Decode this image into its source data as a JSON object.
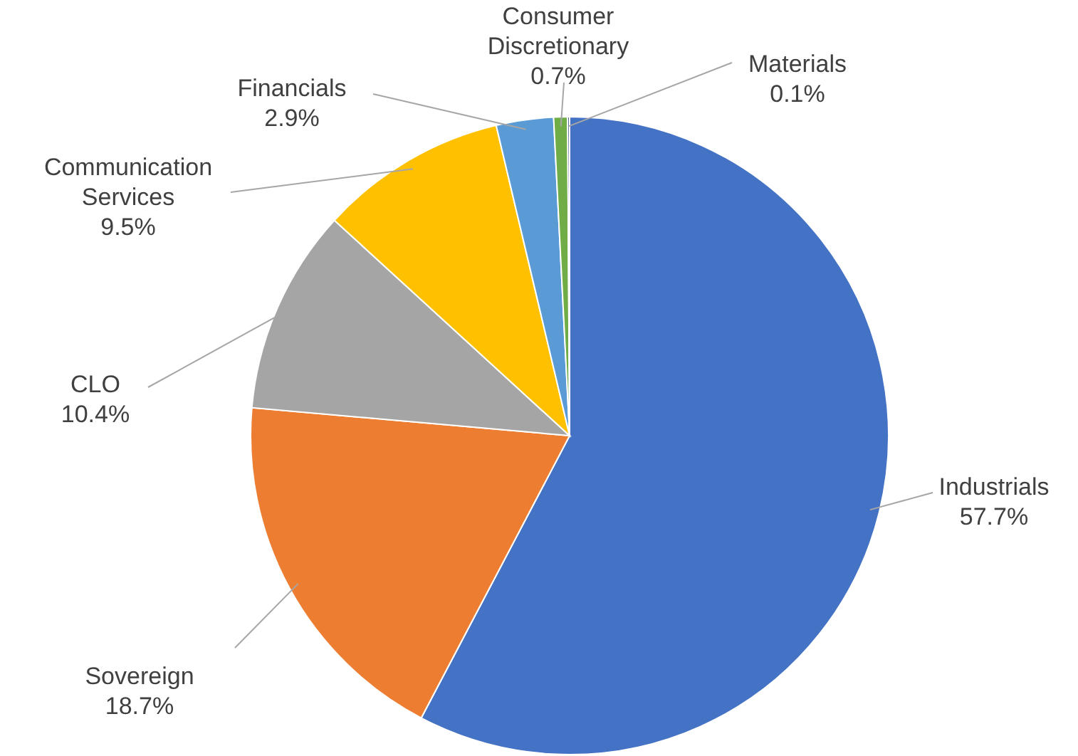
{
  "chart_data": {
    "type": "pie",
    "categories": [
      "Industrials",
      "Sovereign",
      "CLO",
      "Communication Services",
      "Financials",
      "Consumer Discretionary",
      "Materials"
    ],
    "values": [
      57.7,
      18.7,
      10.4,
      9.5,
      2.9,
      0.7,
      0.1
    ],
    "colors": [
      "#4472c4",
      "#ed7d31",
      "#a5a5a5",
      "#ffc000",
      "#5b9bd5",
      "#70ad47",
      "#264478"
    ],
    "value_labels": [
      "57.7%",
      "18.7%",
      "10.4%",
      "9.5%",
      "2.9%",
      "0.7%",
      "0.1%"
    ]
  }
}
